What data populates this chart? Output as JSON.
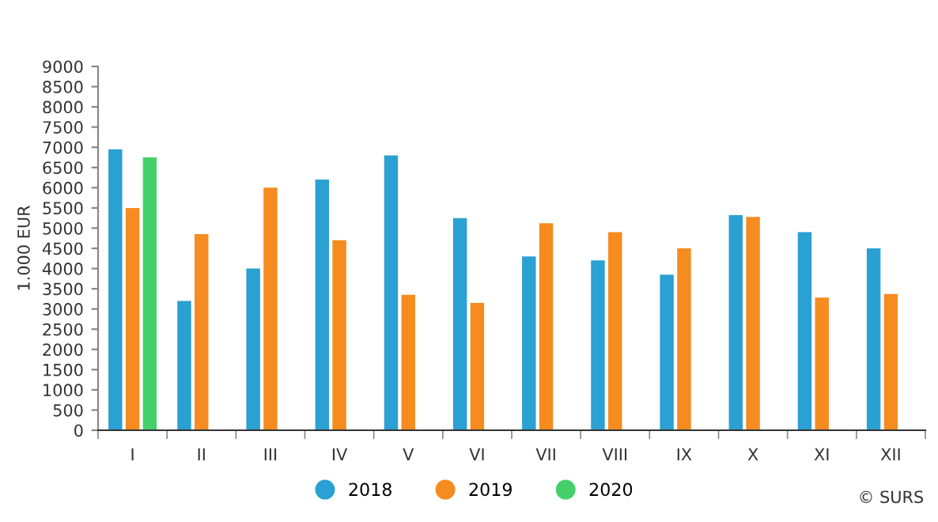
{
  "chart_data": {
    "type": "bar",
    "ylabel": "1.000 EUR",
    "categories": [
      "I",
      "II",
      "III",
      "IV",
      "V",
      "VI",
      "VII",
      "VIII",
      "IX",
      "X",
      "XI",
      "XII"
    ],
    "series": [
      {
        "name": "2018",
        "color": "#2ba0d2",
        "values": [
          6950,
          3200,
          4000,
          6200,
          6800,
          5250,
          4300,
          4200,
          3850,
          5320,
          4900,
          4500
        ]
      },
      {
        "name": "2019",
        "color": "#f68b1f",
        "values": [
          5500,
          4850,
          6000,
          4700,
          3350,
          3150,
          5120,
          4900,
          4500,
          5280,
          3280,
          3370
        ]
      },
      {
        "name": "2020",
        "color": "#46d06c",
        "values": [
          6750,
          null,
          null,
          null,
          null,
          null,
          null,
          null,
          null,
          null,
          null,
          null
        ]
      }
    ],
    "ylim": [
      0,
      9000
    ],
    "yticks": [
      0,
      500,
      1000,
      1500,
      2000,
      2500,
      3000,
      3500,
      4000,
      4500,
      5000,
      5500,
      6000,
      6500,
      7000,
      7500,
      8000,
      8500,
      9000
    ],
    "grid": false,
    "legend": "bottom",
    "annotations": [
      "© SURS"
    ]
  }
}
